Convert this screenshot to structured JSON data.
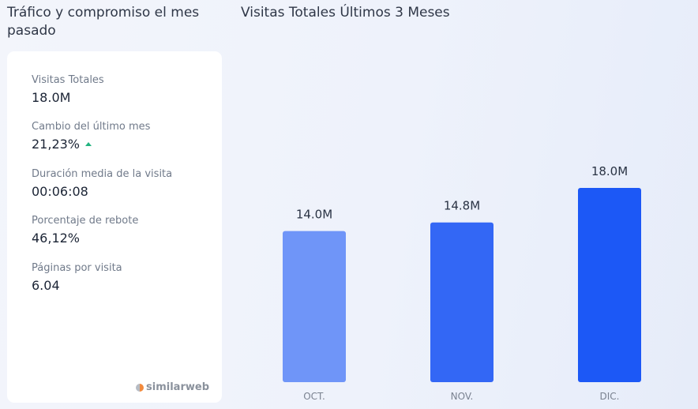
{
  "panel": {
    "title": "Tráfico y compromiso el mes pasado",
    "stats": [
      {
        "label": "Visitas Totales",
        "value": "18.0M"
      },
      {
        "label": "Cambio del último mes",
        "value": "21,23%"
      },
      {
        "label": "Duración media de la visita",
        "value": "00:06:08"
      },
      {
        "label": "Porcentaje de rebote",
        "value": "46,12%"
      },
      {
        "label": "Páginas por visita",
        "value": "6.04"
      }
    ],
    "trend_direction": "up",
    "trend_color": "#22b37f",
    "brand": "similarweb"
  },
  "chart_data": {
    "type": "bar",
    "title": "Visitas Totales Últimos 3 Meses",
    "categories": [
      "OCT.",
      "NOV.",
      "DIC."
    ],
    "values": [
      14.0,
      14.8,
      18.0
    ],
    "value_labels": [
      "14.0M",
      "14.8M",
      "18.0M"
    ],
    "colors": [
      "#6f95f8",
      "#3367f5",
      "#1c58f6"
    ],
    "xlabel": "",
    "ylabel": "",
    "grid": false
  }
}
